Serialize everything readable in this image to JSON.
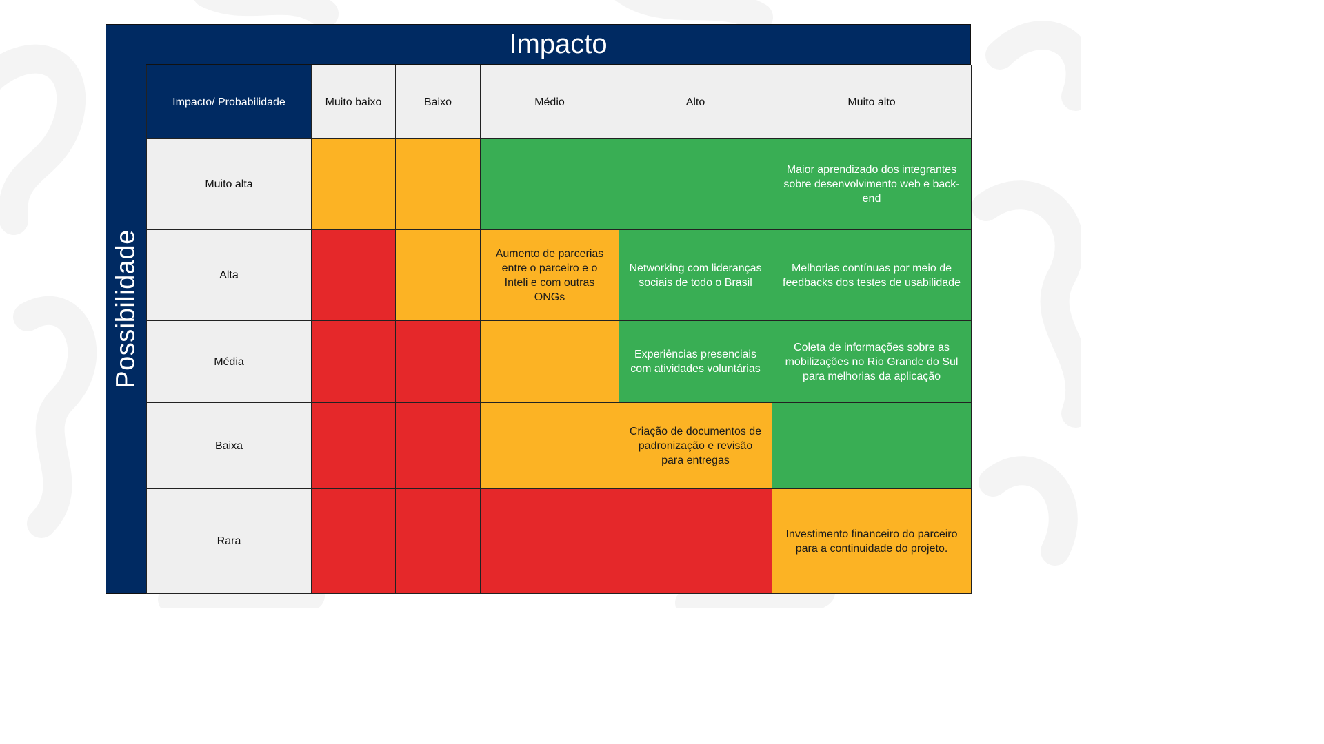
{
  "axis": {
    "column_title": "Impacto",
    "row_title": "Possibilidade"
  },
  "header": {
    "corner": "Impacto/ Probabilidade",
    "columns": [
      "Muito baixo",
      "Baixo",
      "Médio",
      "Alto",
      "Muito alto"
    ]
  },
  "colors": {
    "navy": "#002a62",
    "red": "#e5282a",
    "orange": "#fcb324",
    "green": "#39ae54",
    "header_gray": "#efefef"
  },
  "rows": [
    {
      "label": "Muito alta",
      "cells": [
        {
          "color": "orange",
          "text": ""
        },
        {
          "color": "orange",
          "text": ""
        },
        {
          "color": "green",
          "text": ""
        },
        {
          "color": "green",
          "text": ""
        },
        {
          "color": "green",
          "text": "Maior aprendizado dos integrantes sobre desenvolvimento web e back-end"
        }
      ]
    },
    {
      "label": "Alta",
      "cells": [
        {
          "color": "red",
          "text": ""
        },
        {
          "color": "orange",
          "text": ""
        },
        {
          "color": "orange",
          "text": "Aumento de parcerias entre o parceiro e o Inteli e com outras ONGs"
        },
        {
          "color": "green",
          "text": "Networking com lideranças sociais de todo o Brasil"
        },
        {
          "color": "green",
          "text": "Melhorias contínuas por meio de feedbacks dos testes de usabilidade"
        }
      ]
    },
    {
      "label": "Média",
      "cells": [
        {
          "color": "red",
          "text": ""
        },
        {
          "color": "red",
          "text": ""
        },
        {
          "color": "orange",
          "text": ""
        },
        {
          "color": "green",
          "text": "Experiências presenciais com atividades voluntárias"
        },
        {
          "color": "green",
          "text": "Coleta de informações sobre as mobilizações no Rio Grande do Sul para melhorias da aplicação"
        }
      ]
    },
    {
      "label": "Baixa",
      "cells": [
        {
          "color": "red",
          "text": ""
        },
        {
          "color": "red",
          "text": ""
        },
        {
          "color": "orange",
          "text": ""
        },
        {
          "color": "orange",
          "text": "Criação de documentos de padronização e revisão para entregas"
        },
        {
          "color": "green",
          "text": ""
        }
      ]
    },
    {
      "label": "Rara",
      "cells": [
        {
          "color": "red",
          "text": ""
        },
        {
          "color": "red",
          "text": ""
        },
        {
          "color": "red",
          "text": ""
        },
        {
          "color": "red",
          "text": ""
        },
        {
          "color": "orange",
          "text": "Investimento financeiro do parceiro para a continuidade do projeto."
        }
      ]
    }
  ]
}
